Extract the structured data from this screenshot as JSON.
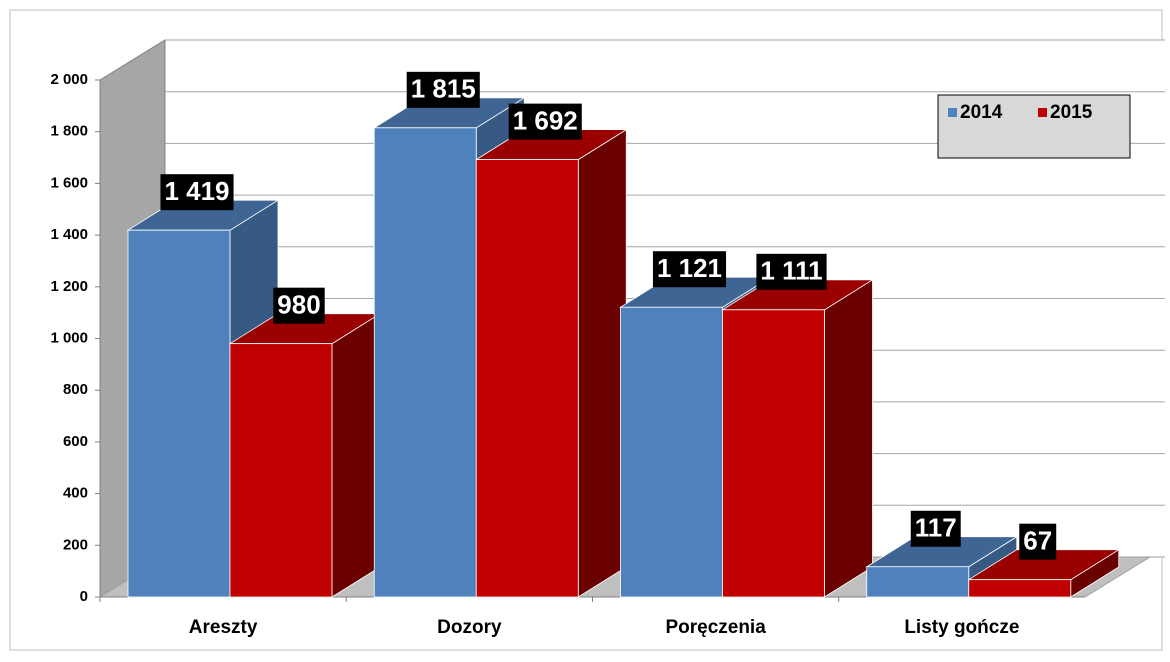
{
  "chart_data": {
    "type": "bar3d",
    "categories": [
      "Areszty",
      "Dozory",
      "Poręczenia",
      "Listy gończe"
    ],
    "series": [
      {
        "name": "2014",
        "color": "#4f81bd",
        "values": [
          1419,
          1815,
          1121,
          117
        ],
        "value_labels": [
          "1 419",
          "1 815",
          "1 121",
          "117"
        ]
      },
      {
        "name": "2015",
        "color": "#c00000",
        "values": [
          980,
          1692,
          1111,
          67
        ],
        "value_labels": [
          "980",
          "1 692",
          "1 111",
          "67"
        ]
      }
    ],
    "ylim": [
      0,
      2000
    ],
    "yticks": [
      0,
      200,
      400,
      600,
      800,
      {
        "value": 1000,
        "label": "1 000"
      },
      {
        "value": 1200,
        "label": "1 200"
      },
      {
        "value": 1400,
        "label": "1 400"
      },
      {
        "value": 1600,
        "label": "1 600"
      },
      {
        "value": 1800,
        "label": "1 800"
      },
      {
        "value": 2000,
        "label": "2 000"
      }
    ],
    "grid": true,
    "legend": "top-right"
  }
}
